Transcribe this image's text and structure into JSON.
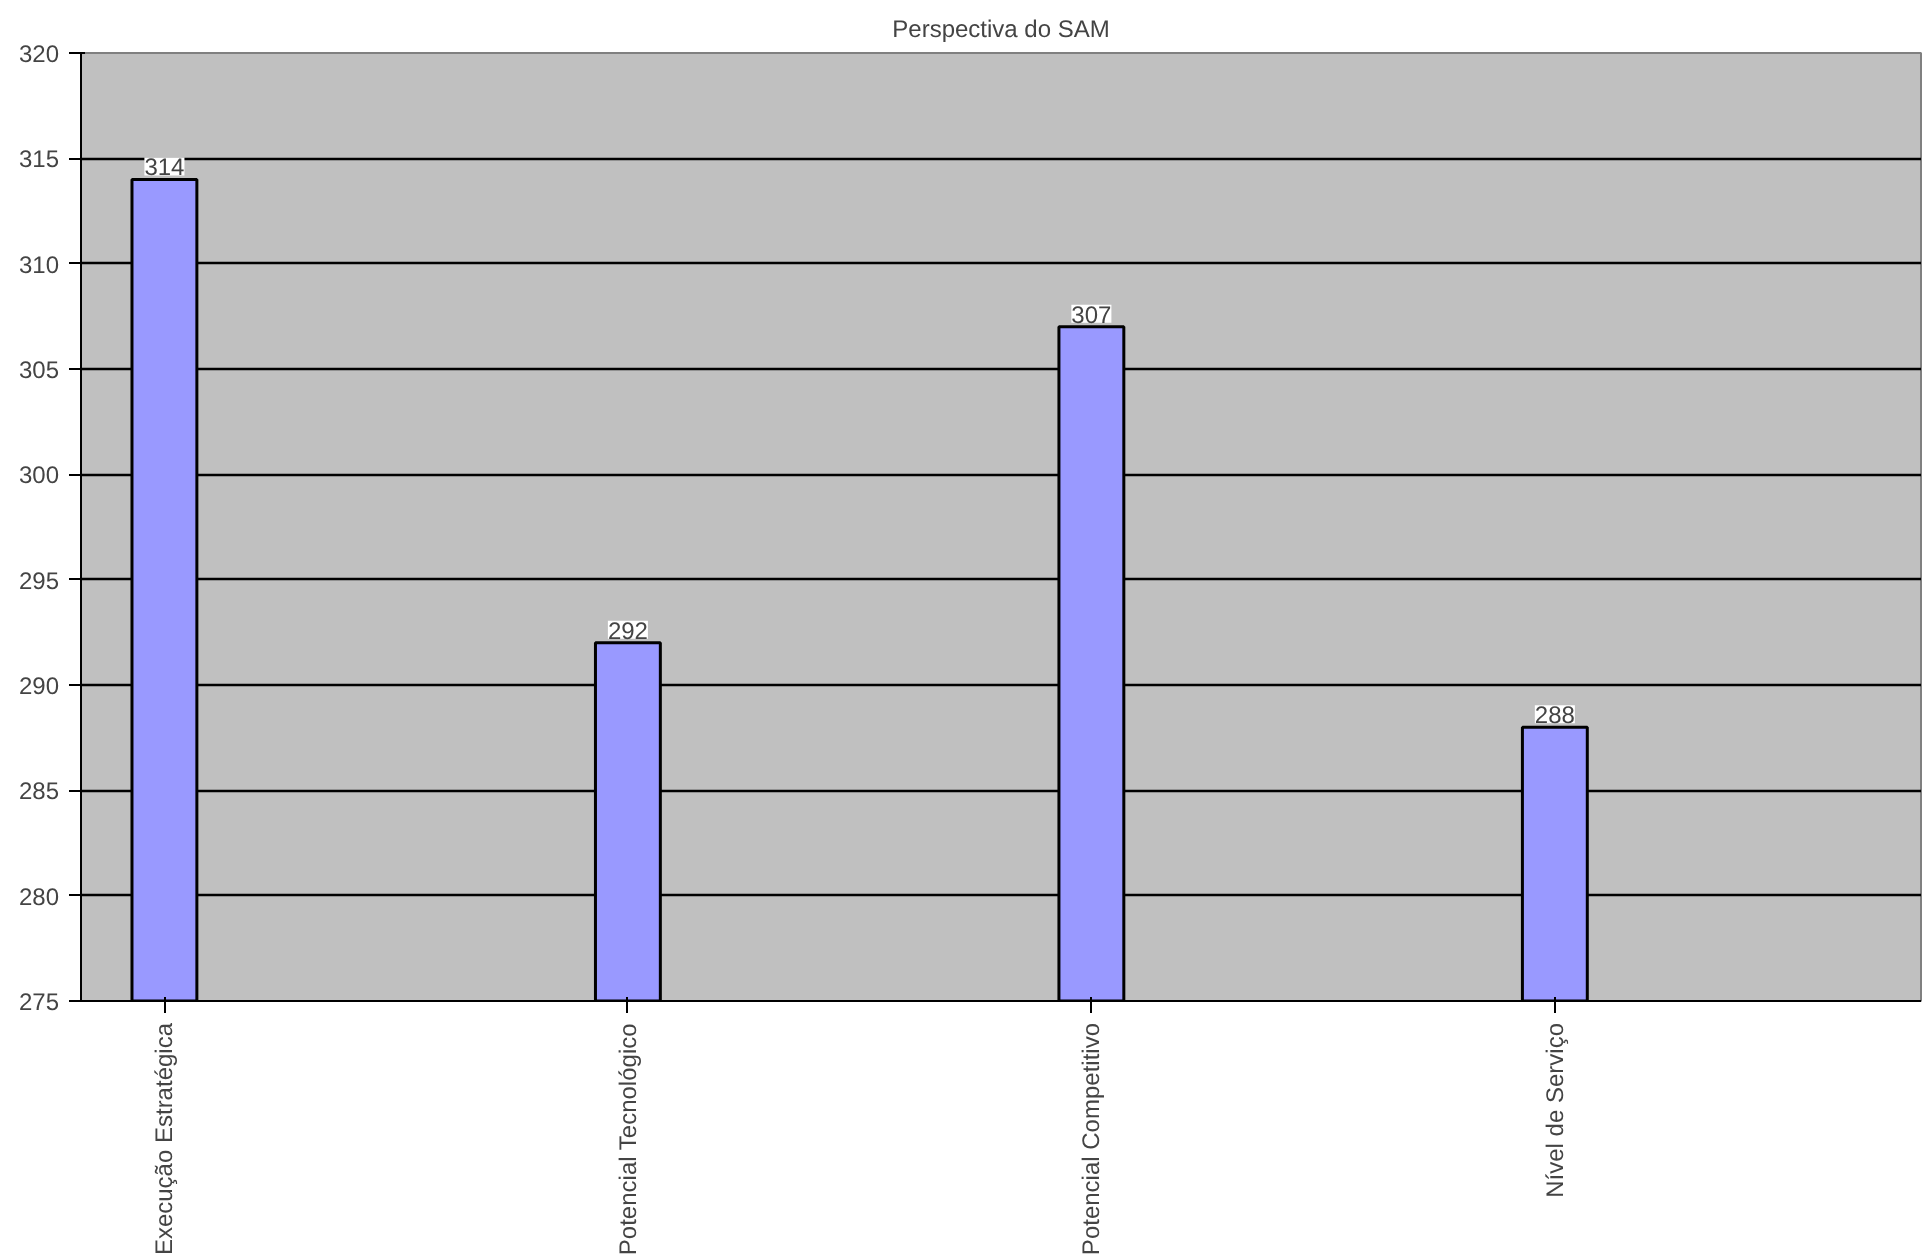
{
  "chart_data": {
    "type": "bar",
    "title": "Perspectiva do SAM",
    "categories": [
      "Execução Estratégica",
      "Potencial Tecnológico",
      "Potencial Competitivo",
      "Nível de Serviço"
    ],
    "values": [
      314,
      292,
      307,
      288
    ],
    "color": "#9999ff",
    "ylim": [
      275,
      320
    ],
    "yticks": [
      275,
      280,
      285,
      290,
      295,
      300,
      305,
      310,
      315,
      320
    ],
    "grid": "y",
    "data_labels": true
  }
}
